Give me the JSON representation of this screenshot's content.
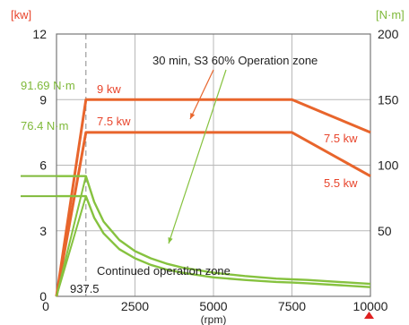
{
  "chart_data": {
    "type": "line",
    "left_axis": {
      "unit_label": "[kw]",
      "ticks": [
        0,
        3,
        6,
        9,
        12
      ],
      "ylim": [
        0,
        12
      ],
      "color": "#e8452c"
    },
    "right_axis": {
      "unit_label": "[N·m]",
      "ticks": [
        50,
        100,
        150,
        200
      ],
      "ylim": [
        0,
        200
      ],
      "color": "#7fb93a"
    },
    "x_axis": {
      "ticks": [
        0,
        2500,
        5000,
        7500,
        10000
      ],
      "tick_labels": [
        "0",
        "2500",
        "5000",
        "7500",
        "10000"
      ],
      "xlim": [
        0,
        10000
      ],
      "unit_label": "(rpm)"
    },
    "base_speed": {
      "value": 937.5,
      "label": "937.5"
    },
    "series": [
      {
        "name": "9 kw",
        "axis": "left",
        "color": "#e8652c",
        "x": [
          0,
          937.5,
          7500,
          10000
        ],
        "y": [
          0,
          9,
          9,
          7.5
        ]
      },
      {
        "name": "7.5 kw",
        "axis": "left",
        "color": "#e8652c",
        "x": [
          0,
          937.5,
          7500,
          10000
        ],
        "y": [
          0,
          7.5,
          7.5,
          5.5
        ]
      },
      {
        "name": "91.69 N·m",
        "axis": "right",
        "color": "#86c23f",
        "x": [
          0,
          937.5,
          1200,
          1500,
          2000,
          2500,
          3000,
          3500,
          4000,
          5000,
          6000,
          7000,
          7500,
          8000,
          9000,
          10000
        ],
        "y": [
          91.69,
          91.69,
          72,
          57,
          43,
          34.5,
          29,
          25,
          22,
          18,
          15.5,
          13.5,
          13,
          12.5,
          11,
          9.5
        ]
      },
      {
        "name": "76.4 N·m",
        "axis": "right",
        "color": "#86c23f",
        "x": [
          0,
          937.5,
          1200,
          1500,
          2000,
          2500,
          3000,
          3500,
          4000,
          5000,
          6000,
          7000,
          7500,
          8000,
          9000,
          10000
        ],
        "y": [
          76.4,
          76.4,
          60,
          48,
          36,
          29,
          24,
          20.5,
          18,
          14.5,
          12.5,
          11,
          10.5,
          10,
          8.5,
          7
        ]
      }
    ],
    "annotations": {
      "left_values": [
        "91.69 N·m",
        "76.4 N·m"
      ],
      "power_labels": [
        "9 kw",
        "7.5 kw",
        "7.5 kw",
        "5.5 kw"
      ],
      "s3_zone": "30 min, S3 60% Operation zone",
      "continuous_zone": "Continued operation zone"
    },
    "grid": true
  }
}
